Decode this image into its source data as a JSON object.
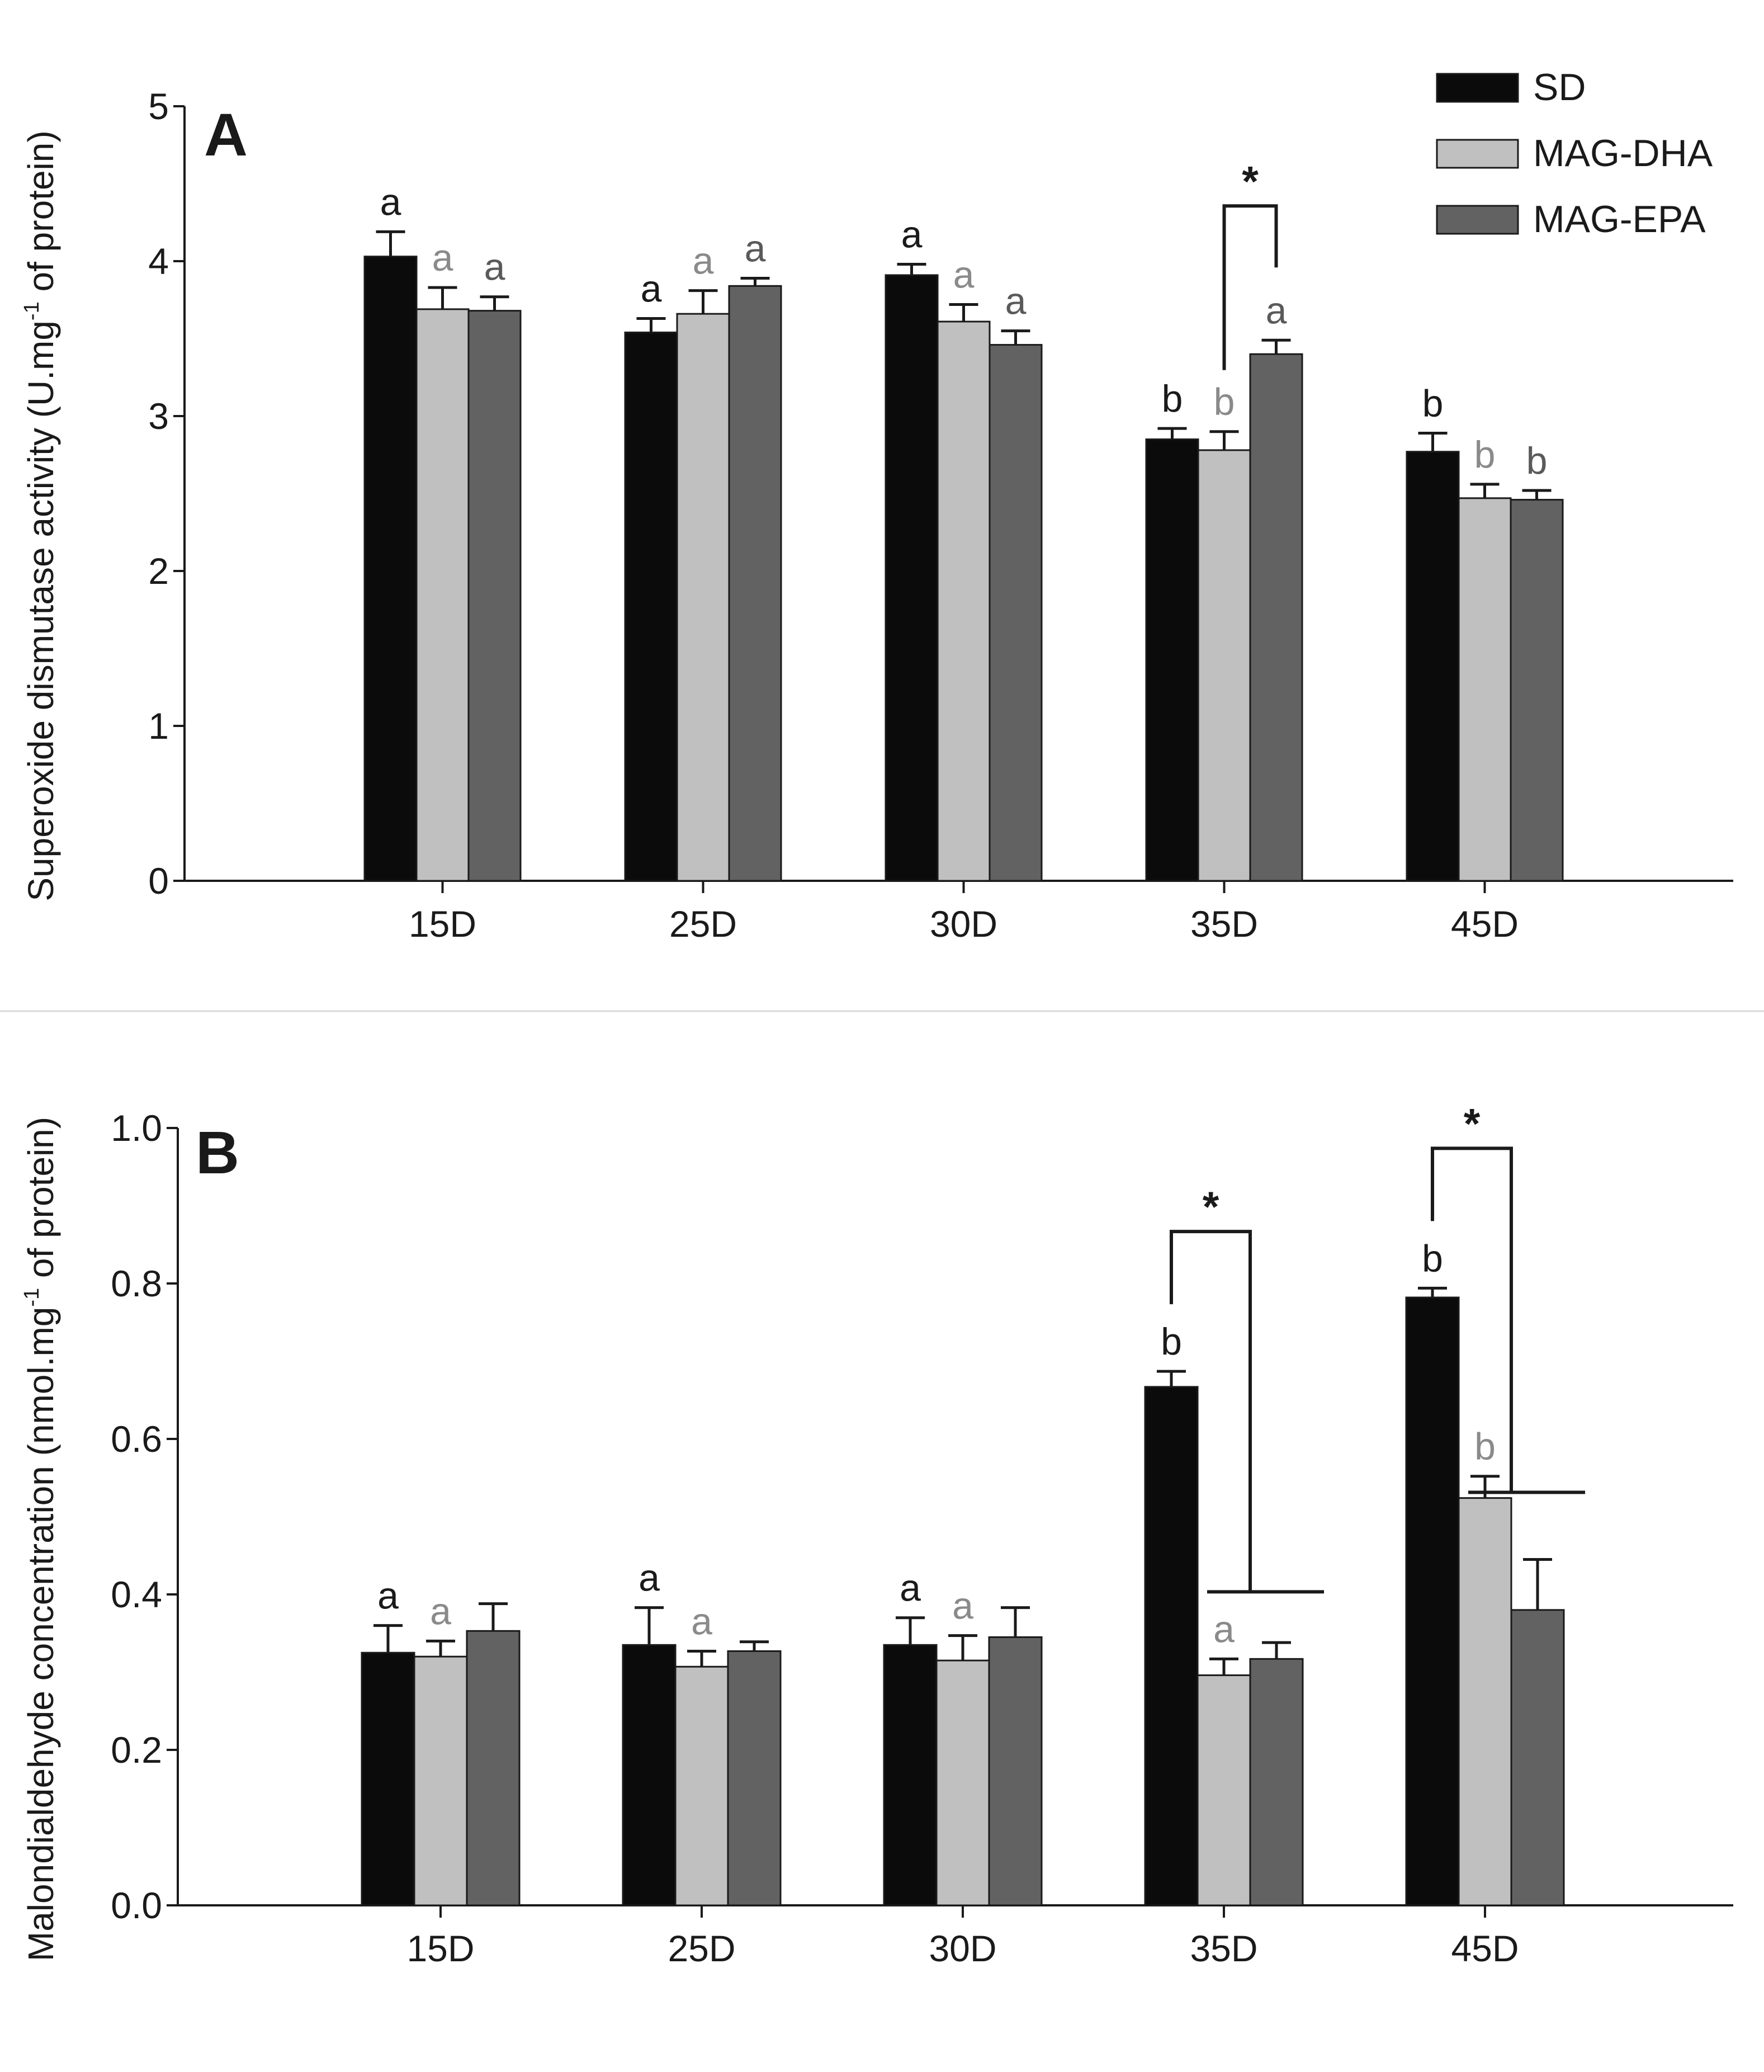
{
  "colors": {
    "SD": "#0b0b0b",
    "MAG-DHA": "#c0c0c0",
    "MAG-EPA": "#626262",
    "letter_SD": "#1a1a1a",
    "letter_MAG-DHA": "#8a8a8a",
    "letter_MAG-EPA": "#5a5a5a"
  },
  "legend": [
    "SD",
    "MAG-DHA",
    "MAG-EPA"
  ],
  "chart_data": [
    {
      "type": "bar",
      "panel": "A",
      "ylabel_main": "Superoxide dismutase activity (U.mg",
      "ylabel_sup": "-1",
      "ylabel_tail": " of protein)",
      "xlabel": "",
      "ylim": [
        0,
        5
      ],
      "yticks": [
        0,
        1,
        2,
        3,
        4,
        5
      ],
      "tick_labels": [
        "0",
        "1",
        "2",
        "3",
        "4",
        "5"
      ],
      "categories": [
        "15D",
        "25D",
        "30D",
        "35D",
        "45D"
      ],
      "series": [
        {
          "name": "SD",
          "values": [
            4.03,
            3.54,
            3.91,
            2.85,
            2.77
          ],
          "errors": [
            0.16,
            0.09,
            0.07,
            0.07,
            0.12
          ],
          "letters": [
            "a",
            "a",
            "a",
            "b",
            "b"
          ]
        },
        {
          "name": "MAG-DHA",
          "values": [
            3.69,
            3.66,
            3.61,
            2.78,
            2.47
          ],
          "errors": [
            0.14,
            0.15,
            0.11,
            0.12,
            0.09
          ],
          "letters": [
            "a",
            "a",
            "a",
            "b",
            "b"
          ]
        },
        {
          "name": "MAG-EPA",
          "values": [
            3.68,
            3.84,
            3.46,
            3.4,
            2.46
          ],
          "errors": [
            0.09,
            0.05,
            0.09,
            0.09,
            0.06
          ],
          "letters": [
            "a",
            "a",
            "a",
            "a",
            "b"
          ]
        }
      ],
      "significance": [
        {
          "category": "35D",
          "from": "MAG-DHA",
          "to": "MAG-EPA",
          "label": "*"
        }
      ]
    },
    {
      "type": "bar",
      "panel": "B",
      "ylabel_main": "Malondialdehyde concentration (nmol.mg",
      "ylabel_sup": "-1",
      "ylabel_tail": " of protein)",
      "xlabel": "",
      "ylim": [
        0,
        1.0
      ],
      "yticks": [
        0,
        0.2,
        0.4,
        0.6,
        0.8,
        1.0
      ],
      "tick_labels": [
        "0.0",
        "0.2",
        "0.4",
        "0.6",
        "0.8",
        "1.0"
      ],
      "categories": [
        "15D",
        "25D",
        "30D",
        "35D",
        "45D"
      ],
      "series": [
        {
          "name": "SD",
          "values": [
            0.325,
            0.335,
            0.335,
            0.667,
            0.782
          ],
          "errors": [
            0.035,
            0.048,
            0.035,
            0.02,
            0.012
          ],
          "letters": [
            "a",
            "a",
            "a",
            "b",
            "b"
          ]
        },
        {
          "name": "MAG-DHA",
          "values": [
            0.32,
            0.307,
            0.315,
            0.296,
            0.524
          ],
          "errors": [
            0.02,
            0.02,
            0.032,
            0.021,
            0.028
          ],
          "letters": [
            "a",
            "a",
            "a",
            "a",
            "b"
          ]
        },
        {
          "name": "MAG-EPA",
          "values": [
            0.353,
            0.327,
            0.345,
            0.317,
            0.38
          ],
          "errors": [
            0.035,
            0.012,
            0.038,
            0.021,
            0.065
          ],
          "letters": [
            "",
            "",
            "",
            "",
            ""
          ]
        }
      ],
      "significance": [
        {
          "category": "35D",
          "from": "SD",
          "to": "MAG-DHA+MAG-EPA",
          "label": "*"
        },
        {
          "category": "45D",
          "from": "SD",
          "to": "MAG-DHA+MAG-EPA",
          "label": "*"
        }
      ]
    }
  ]
}
